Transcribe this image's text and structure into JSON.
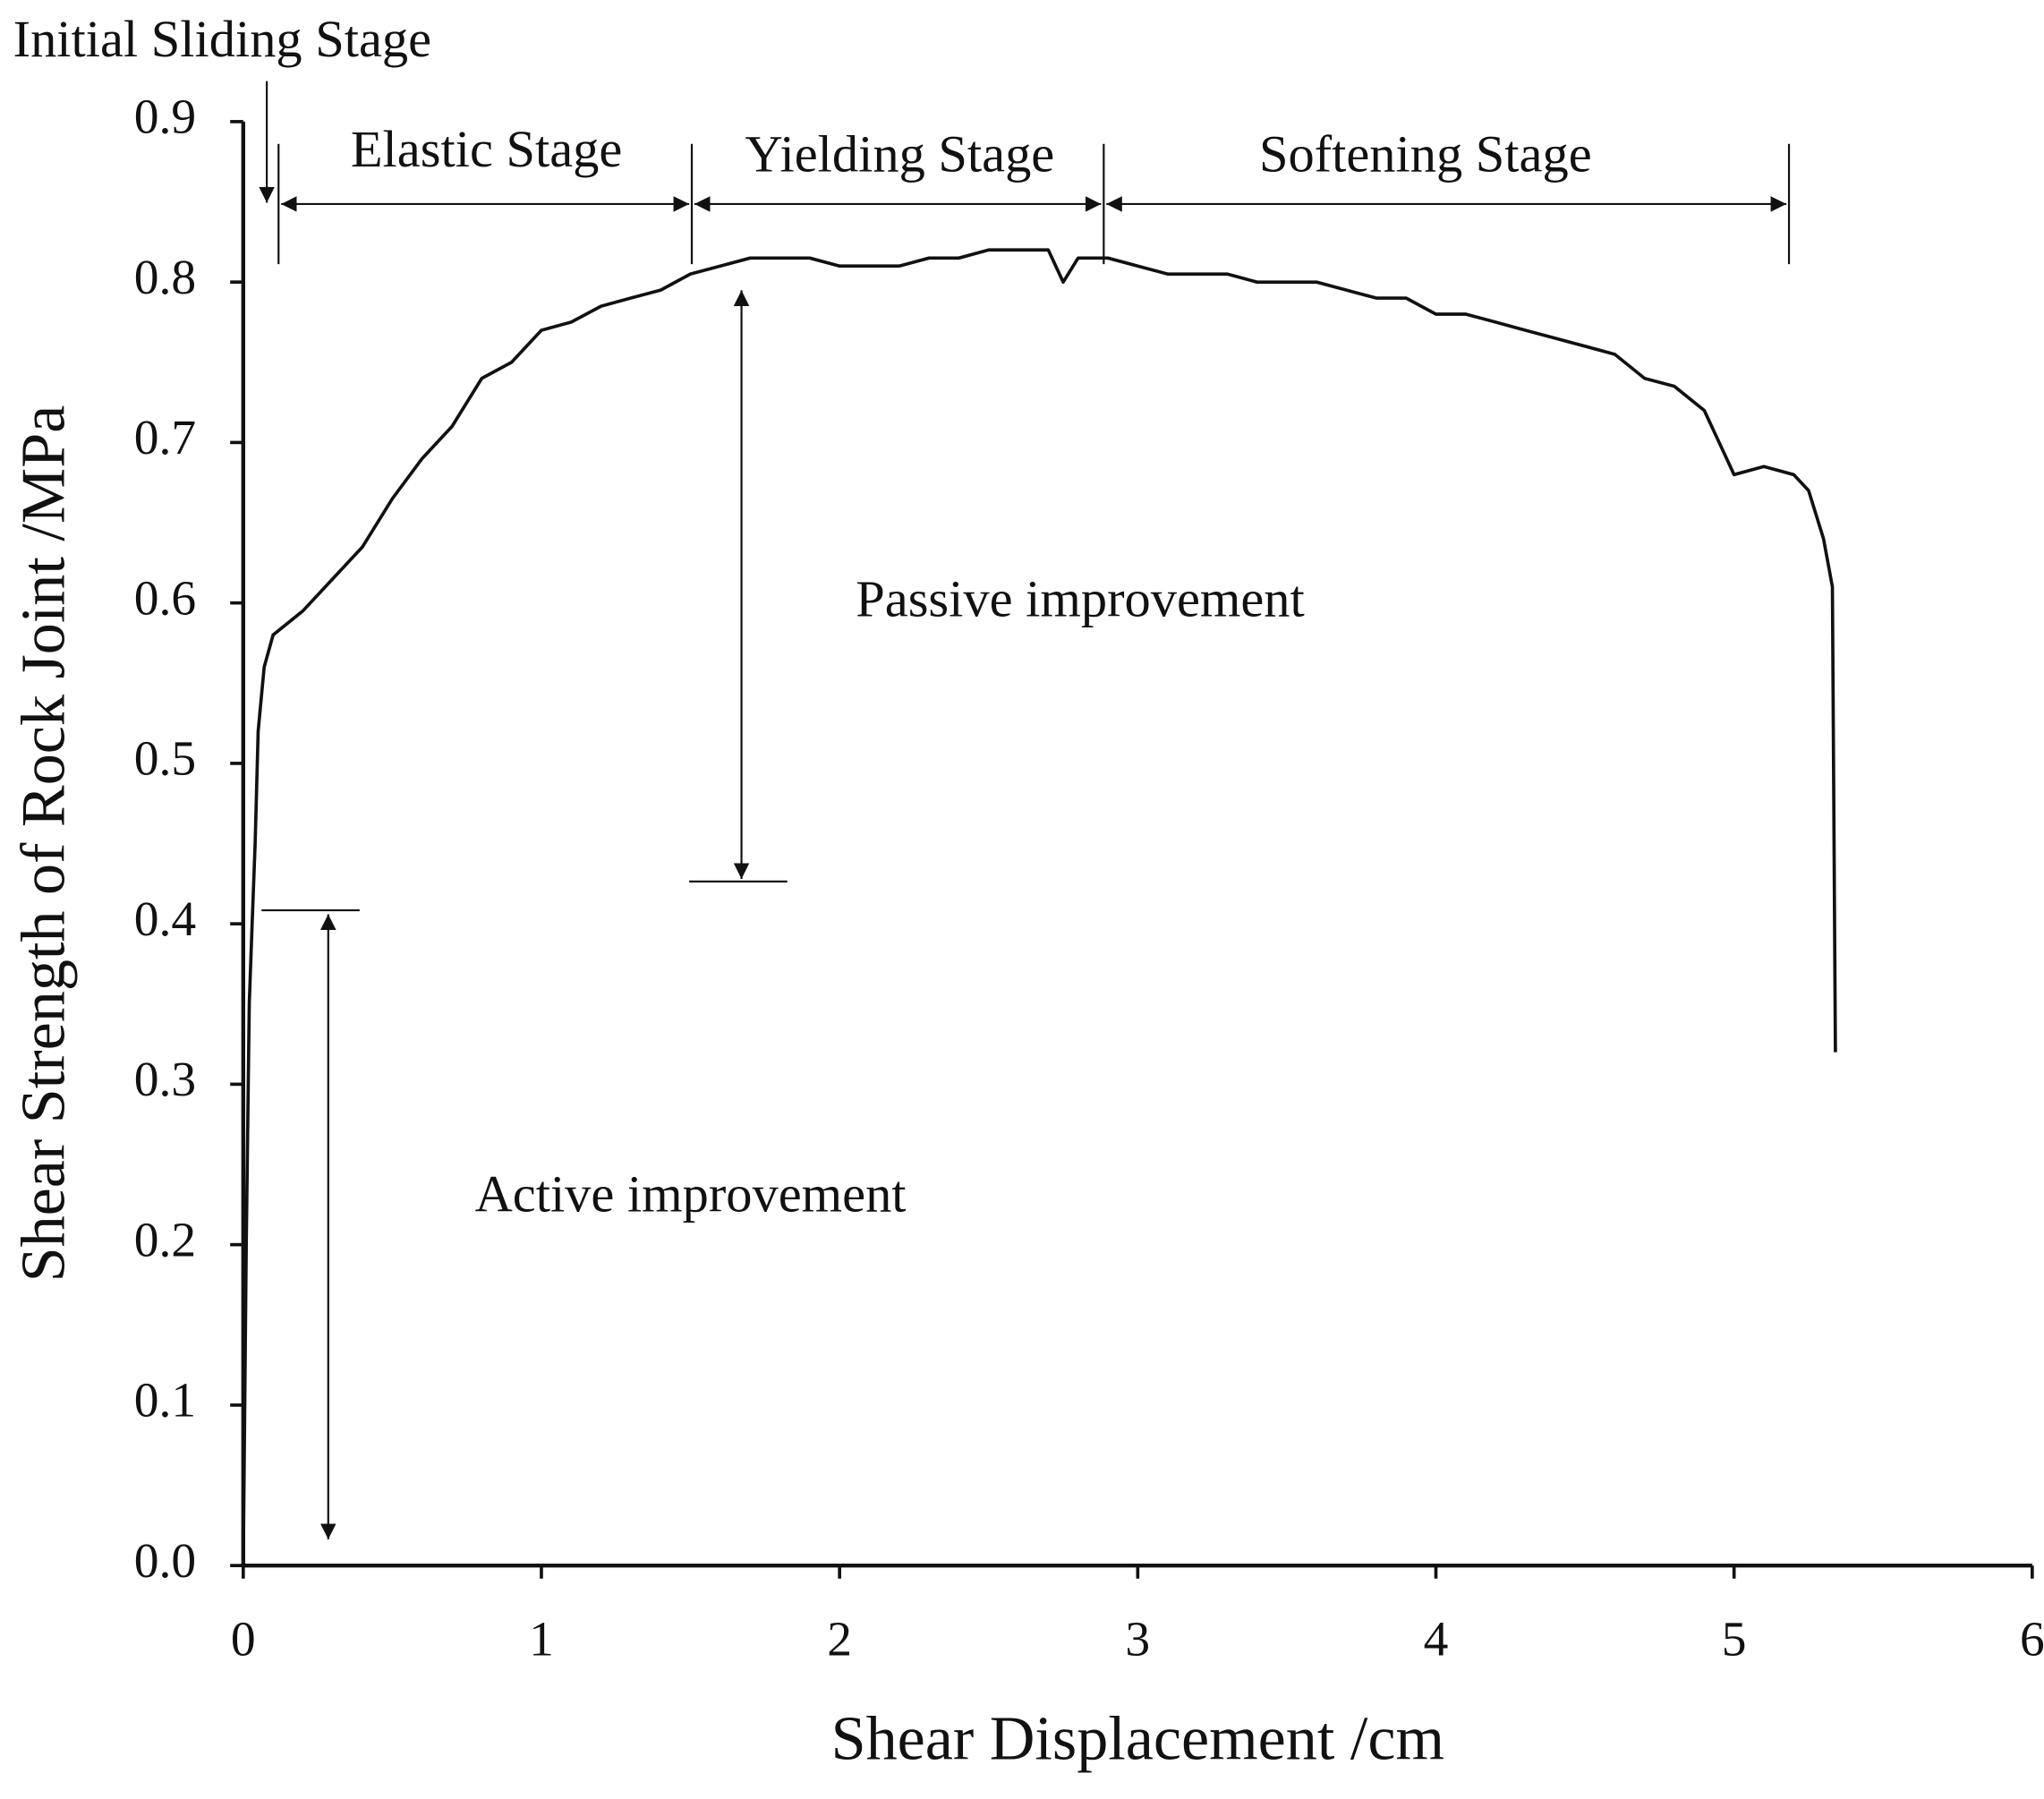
{
  "chart_data": {
    "type": "line",
    "x_label": "Shear Displacement /cm",
    "y_label": "Shear Strength of Rock Joint /MPa",
    "annotations": [
      "Initial Sliding Stage",
      "Elastic Stage",
      "Yielding Stage",
      "Softening Stage",
      "Passive improvement",
      "Active improvement"
    ],
    "color": "#111111",
    "x": [
      0,
      0.01,
      0.02,
      0.03,
      0.04,
      0.05,
      0.07,
      0.1,
      0.2,
      0.3,
      0.4,
      0.5,
      0.6,
      0.7,
      0.8,
      0.9,
      1.0,
      1.1,
      1.2,
      1.3,
      1.4,
      1.5,
      1.6,
      1.7,
      1.8,
      1.9,
      2.0,
      2.1,
      2.2,
      2.3,
      2.4,
      2.5,
      2.6,
      2.7,
      2.75,
      2.8,
      2.9,
      3.0,
      3.1,
      3.2,
      3.3,
      3.4,
      3.5,
      3.6,
      3.7,
      3.8,
      3.9,
      4.0,
      4.1,
      4.2,
      4.3,
      4.4,
      4.5,
      4.6,
      4.7,
      4.8,
      4.9,
      4.95,
      5.0,
      5.1,
      5.2,
      5.25,
      5.3,
      5.33,
      5.34
    ],
    "values": [
      0,
      0.2,
      0.35,
      0.4,
      0.45,
      0.52,
      0.56,
      0.58,
      0.595,
      0.615,
      0.635,
      0.665,
      0.69,
      0.71,
      0.74,
      0.75,
      0.77,
      0.775,
      0.785,
      0.79,
      0.795,
      0.805,
      0.81,
      0.815,
      0.815,
      0.815,
      0.81,
      0.81,
      0.81,
      0.815,
      0.815,
      0.82,
      0.82,
      0.82,
      0.8,
      0.815,
      0.815,
      0.81,
      0.805,
      0.805,
      0.805,
      0.8,
      0.8,
      0.8,
      0.795,
      0.79,
      0.79,
      0.78,
      0.78,
      0.775,
      0.77,
      0.765,
      0.76,
      0.755,
      0.74,
      0.735,
      0.72,
      0.7,
      0.68,
      0.685,
      0.68,
      0.67,
      0.64,
      0.61,
      0.32
    ],
    "xlim": [
      0,
      6
    ],
    "xticks": [
      0,
      1,
      2,
      3,
      4,
      5,
      6
    ],
    "ylim": [
      0,
      0.9
    ],
    "yticks": [
      {
        "value": 0,
        "label": "0.0"
      },
      0.1,
      0.2,
      0.3,
      0.4,
      0.5,
      0.6,
      0.7,
      0.8,
      0.9
    ]
  }
}
